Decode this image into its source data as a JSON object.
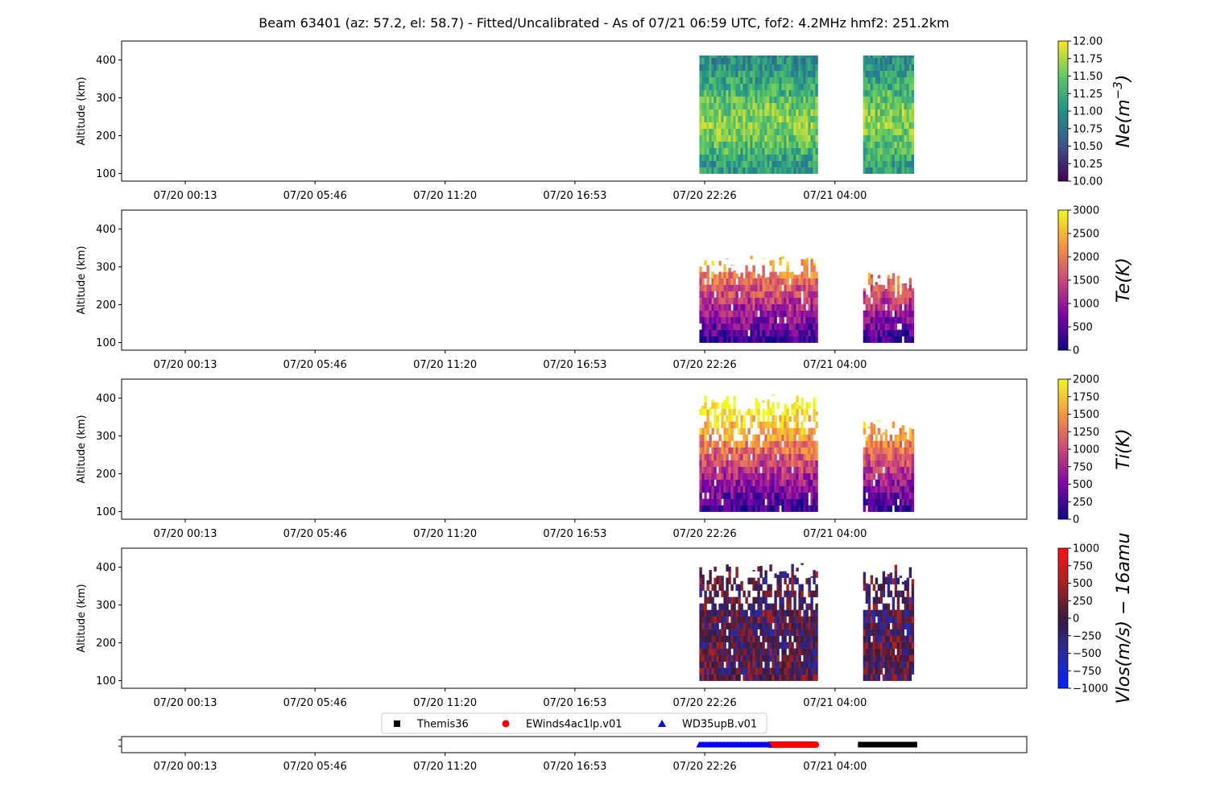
{
  "title": "Beam 63401 (az: 57.2, el: 58.7) - Fitted/Uncalibrated - As of 07/21 06:59 UTC, fof2: 4.2MHz  hmf2: 251.2km",
  "chart_data": [
    {
      "type": "heatmap",
      "xlabel": "",
      "ylabel": "Altitude (km)",
      "ylim": [
        80,
        450
      ],
      "yticks": [
        100,
        200,
        300,
        400
      ],
      "xlim_hours": [
        -2.5,
        36.2
      ],
      "xticks": [
        {
          "h": 0.22,
          "label": "07/20 00:13"
        },
        {
          "h": 5.77,
          "label": "07/20 05:46"
        },
        {
          "h": 11.33,
          "label": "07/20 11:20"
        },
        {
          "h": 16.88,
          "label": "07/20 16:53"
        },
        {
          "h": 22.43,
          "label": "07/20 22:26"
        },
        {
          "h": 28.0,
          "label": "07/21 04:00"
        }
      ],
      "data_blocks": [
        {
          "start_h": 22.2,
          "end_h": 27.2,
          "alt_min": 100,
          "alt_max": 412
        },
        {
          "start_h": 29.2,
          "end_h": 31.3,
          "alt_min": 100,
          "alt_max": 412
        }
      ],
      "colorbar": {
        "label": "Ne(m^{-3})",
        "cmap": "viridis",
        "range": [
          10.0,
          12.0
        ],
        "ticks": [
          "10.00",
          "10.25",
          "10.50",
          "10.75",
          "11.00",
          "11.25",
          "11.50",
          "11.75",
          "12.00"
        ]
      }
    },
    {
      "type": "heatmap",
      "xlabel": "",
      "ylabel": "Altitude (km)",
      "ylim": [
        80,
        450
      ],
      "yticks": [
        100,
        200,
        300,
        400
      ],
      "xlim_hours": [
        -2.5,
        36.2
      ],
      "xticks": [
        {
          "h": 0.22,
          "label": "07/20 00:13"
        },
        {
          "h": 5.77,
          "label": "07/20 05:46"
        },
        {
          "h": 11.33,
          "label": "07/20 11:20"
        },
        {
          "h": 16.88,
          "label": "07/20 16:53"
        },
        {
          "h": 22.43,
          "label": "07/20 22:26"
        },
        {
          "h": 28.0,
          "label": "07/21 04:00"
        }
      ],
      "data_blocks": [
        {
          "start_h": 22.2,
          "end_h": 27.2,
          "alt_min": 100,
          "alt_max": 330
        },
        {
          "start_h": 29.2,
          "end_h": 31.3,
          "alt_min": 100,
          "alt_max": 285
        }
      ],
      "colorbar": {
        "label": "Te(K)",
        "cmap": "plasma",
        "range": [
          0,
          3000
        ],
        "ticks": [
          "0",
          "500",
          "1000",
          "1500",
          "2000",
          "2500",
          "3000"
        ]
      }
    },
    {
      "type": "heatmap",
      "xlabel": "",
      "ylabel": "Altitude (km)",
      "ylim": [
        80,
        450
      ],
      "yticks": [
        100,
        200,
        300,
        400
      ],
      "xlim_hours": [
        -2.5,
        36.2
      ],
      "xticks": [
        {
          "h": 0.22,
          "label": "07/20 00:13"
        },
        {
          "h": 5.77,
          "label": "07/20 05:46"
        },
        {
          "h": 11.33,
          "label": "07/20 11:20"
        },
        {
          "h": 16.88,
          "label": "07/20 16:53"
        },
        {
          "h": 22.43,
          "label": "07/20 22:26"
        },
        {
          "h": 28.0,
          "label": "07/21 04:00"
        }
      ],
      "data_blocks": [
        {
          "start_h": 22.2,
          "end_h": 27.2,
          "alt_min": 100,
          "alt_max": 410
        },
        {
          "start_h": 29.2,
          "end_h": 31.3,
          "alt_min": 100,
          "alt_max": 345
        }
      ],
      "colorbar": {
        "label": "Ti(K)",
        "cmap": "plasma",
        "range": [
          0,
          2000
        ],
        "ticks": [
          "0",
          "250",
          "500",
          "750",
          "1000",
          "1250",
          "1500",
          "1750",
          "2000"
        ]
      }
    },
    {
      "type": "heatmap",
      "xlabel": "",
      "ylabel": "Altitude (km)",
      "ylim": [
        80,
        450
      ],
      "yticks": [
        100,
        200,
        300,
        400
      ],
      "xlim_hours": [
        -2.5,
        36.2
      ],
      "xticks": [
        {
          "h": 0.22,
          "label": "07/20 00:13"
        },
        {
          "h": 5.77,
          "label": "07/20 05:46"
        },
        {
          "h": 11.33,
          "label": "07/20 11:20"
        },
        {
          "h": 16.88,
          "label": "07/20 16:53"
        },
        {
          "h": 22.43,
          "label": "07/20 22:26"
        },
        {
          "h": 28.0,
          "label": "07/21 04:00"
        }
      ],
      "data_blocks": [
        {
          "start_h": 22.2,
          "end_h": 27.2,
          "alt_min": 100,
          "alt_max": 412
        },
        {
          "start_h": 29.2,
          "end_h": 31.3,
          "alt_min": 100,
          "alt_max": 412
        }
      ],
      "colorbar": {
        "label": "Vlos(m/s) - 16amu",
        "cmap": "bwr_dark",
        "range": [
          -1000,
          1000
        ],
        "ticks": [
          "-1000",
          "-750",
          "-500",
          "-250",
          "0",
          "250",
          "500",
          "750",
          "1000"
        ]
      }
    },
    {
      "type": "scatter",
      "xlabel": "",
      "xlim_hours": [
        -2.5,
        36.2
      ],
      "xticks": [
        {
          "h": 0.22,
          "label": "07/20 00:13"
        },
        {
          "h": 5.77,
          "label": "07/20 05:46"
        },
        {
          "h": 11.33,
          "label": "07/20 11:20"
        },
        {
          "h": 16.88,
          "label": "07/20 16:53"
        },
        {
          "h": 22.43,
          "label": "07/20 22:26"
        },
        {
          "h": 28.0,
          "label": "07/21 04:00"
        }
      ],
      "legend_position": "top",
      "series": [
        {
          "name": "Themis36",
          "marker": "square",
          "color": "#000000",
          "start_h": 29.1,
          "end_h": 31.4
        },
        {
          "name": "EWinds4ac1lp.v01",
          "marker": "circle",
          "color": "#ff0000",
          "start_h": 25.2,
          "end_h": 27.2
        },
        {
          "name": "WD35upB.v01",
          "marker": "triangle",
          "color": "#0000ff",
          "start_h": 22.2,
          "end_h": 25.2
        }
      ]
    }
  ]
}
